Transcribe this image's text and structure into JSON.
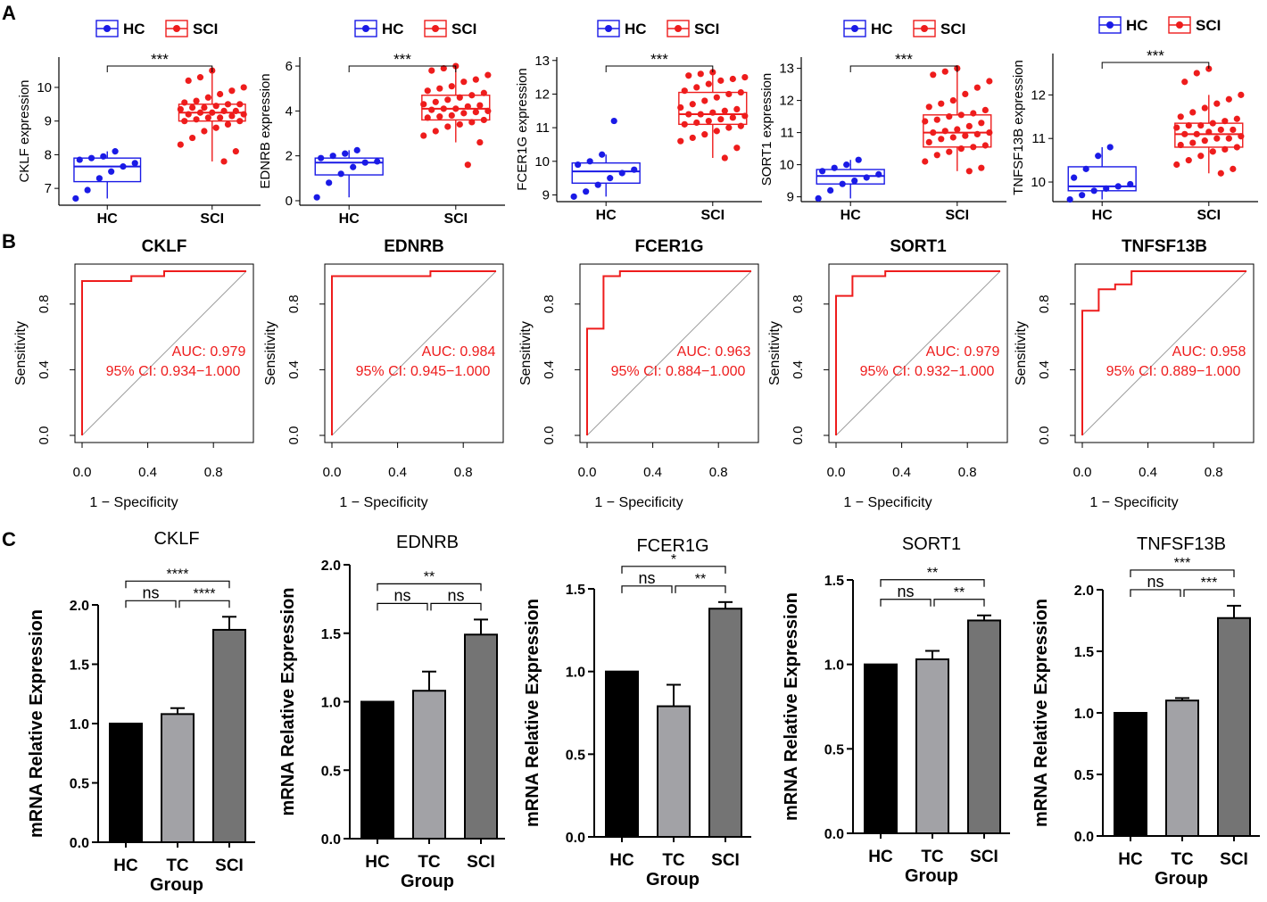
{
  "colors": {
    "hc": "#1a1ae6",
    "sci": "#ee1c1c",
    "roc": "#ee1c1c",
    "diag": "#9e9e9e",
    "axis": "#000000",
    "bar_hc": "#000000",
    "bar_tc": "#a2a2a6",
    "bar_sci": "#747474"
  },
  "panel_labels": {
    "a": "A",
    "b": "B",
    "c": "C"
  },
  "legend": {
    "hc": "HC",
    "sci": "SCI"
  },
  "roc_axes": {
    "xlabel": "1 − Specificity",
    "ylabel": "Sensitivity",
    "ticks": [
      "0.0",
      "0.4",
      "0.8"
    ],
    "auc_prefix": "AUC: ",
    "ci_prefix": "95% CI: "
  },
  "bar_axes": {
    "xlabel": "Group",
    "ylabel": "mRNA Relative Expression"
  },
  "chart_data": [
    {
      "type": "box",
      "panel": "A",
      "gene": "CKLF",
      "ylabel": "CKLF expression",
      "categories": [
        "HC",
        "SCI"
      ],
      "ylim": [
        6.5,
        10.9
      ],
      "yticks": [
        7,
        8,
        9,
        10
      ],
      "significance": "***",
      "groups": [
        {
          "name": "HC",
          "q1": 7.2,
          "median": 7.65,
          "q3": 7.9,
          "whisker_low": 6.7,
          "whisker_high": 8.1,
          "points": [
            6.7,
            6.95,
            7.3,
            7.5,
            7.65,
            7.75,
            7.85,
            7.9,
            7.95,
            8.1
          ]
        },
        {
          "name": "SCI",
          "q1": 9.0,
          "median": 9.25,
          "q3": 9.5,
          "whisker_low": 7.8,
          "whisker_high": 10.5,
          "points": [
            7.8,
            8.1,
            8.3,
            8.5,
            8.7,
            8.8,
            8.9,
            9.0,
            9.0,
            9.05,
            9.1,
            9.1,
            9.15,
            9.2,
            9.2,
            9.25,
            9.25,
            9.3,
            9.3,
            9.35,
            9.4,
            9.4,
            9.45,
            9.5,
            9.5,
            9.55,
            9.6,
            9.7,
            9.8,
            9.9,
            10.0,
            10.2,
            10.3,
            10.5
          ]
        }
      ]
    },
    {
      "type": "box",
      "panel": "A",
      "gene": "EDNRB",
      "ylabel": "EDNRB expression",
      "categories": [
        "HC",
        "SCI"
      ],
      "ylim": [
        -0.2,
        6.4
      ],
      "yticks": [
        0,
        2,
        4,
        6
      ],
      "significance": "***",
      "groups": [
        {
          "name": "HC",
          "q1": 1.15,
          "median": 1.7,
          "q3": 1.9,
          "whisker_low": 0.15,
          "whisker_high": 2.25,
          "points": [
            0.15,
            0.8,
            1.2,
            1.5,
            1.7,
            1.75,
            1.9,
            2.0,
            2.1,
            2.25
          ]
        },
        {
          "name": "SCI",
          "q1": 3.6,
          "median": 4.1,
          "q3": 4.7,
          "whisker_low": 2.6,
          "whisker_high": 6.0,
          "points": [
            1.6,
            2.6,
            2.9,
            3.1,
            3.3,
            3.4,
            3.5,
            3.6,
            3.7,
            3.75,
            3.8,
            3.9,
            3.95,
            4.0,
            4.05,
            4.1,
            4.1,
            4.2,
            4.25,
            4.3,
            4.4,
            4.5,
            4.6,
            4.7,
            4.8,
            4.9,
            5.0,
            5.1,
            5.3,
            5.4,
            5.6,
            5.8,
            5.9,
            6.0
          ]
        }
      ]
    },
    {
      "type": "box",
      "panel": "A",
      "gene": "FCER1G",
      "ylabel": "FCER1G expression",
      "categories": [
        "HC",
        "SCI"
      ],
      "ylim": [
        8.8,
        13.1
      ],
      "yticks": [
        9,
        10,
        11,
        12,
        13
      ],
      "significance": "***",
      "groups": [
        {
          "name": "HC",
          "q1": 9.35,
          "median": 9.7,
          "q3": 9.95,
          "whisker_low": 8.95,
          "whisker_high": 10.2,
          "points": [
            8.95,
            9.1,
            9.3,
            9.5,
            9.65,
            9.75,
            9.9,
            10.0,
            10.2,
            11.2
          ]
        },
        {
          "name": "SCI",
          "q1": 11.1,
          "median": 11.4,
          "q3": 12.05,
          "whisker_low": 10.1,
          "whisker_high": 12.6,
          "points": [
            10.1,
            10.4,
            10.6,
            10.7,
            10.8,
            10.9,
            11.0,
            11.05,
            11.1,
            11.15,
            11.2,
            11.25,
            11.3,
            11.35,
            11.4,
            11.4,
            11.45,
            11.5,
            11.55,
            11.6,
            11.7,
            11.8,
            11.9,
            12.0,
            12.05,
            12.1,
            12.2,
            12.3,
            12.4,
            12.45,
            12.5,
            12.55,
            12.6,
            12.65
          ]
        }
      ]
    },
    {
      "type": "box",
      "panel": "A",
      "gene": "SORT1",
      "ylabel": "SORT1 expression",
      "categories": [
        "HC",
        "SCI"
      ],
      "ylim": [
        8.85,
        13.35
      ],
      "yticks": [
        9,
        10,
        11,
        12,
        13
      ],
      "significance": "***",
      "groups": [
        {
          "name": "HC",
          "q1": 9.4,
          "median": 9.65,
          "q3": 9.85,
          "whisker_low": 8.95,
          "whisker_high": 10.15,
          "points": [
            8.95,
            9.2,
            9.4,
            9.5,
            9.6,
            9.7,
            9.8,
            9.9,
            10.0,
            10.15
          ]
        },
        {
          "name": "SCI",
          "q1": 10.55,
          "median": 11.0,
          "q3": 11.55,
          "whisker_low": 9.8,
          "whisker_high": 13.0,
          "points": [
            9.8,
            9.9,
            10.1,
            10.3,
            10.4,
            10.5,
            10.55,
            10.6,
            10.7,
            10.8,
            10.85,
            10.9,
            10.95,
            11.0,
            11.0,
            11.05,
            11.1,
            11.2,
            11.3,
            11.35,
            11.4,
            11.5,
            11.55,
            11.6,
            11.7,
            11.8,
            11.9,
            12.0,
            12.2,
            12.4,
            12.6,
            12.8,
            12.9,
            13.0
          ]
        }
      ]
    },
    {
      "type": "box",
      "panel": "A",
      "gene": "TNFSF13B",
      "ylabel": "TNFSF13B expression",
      "categories": [
        "HC",
        "SCI"
      ],
      "ylim": [
        9.55,
        12.95
      ],
      "yticks": [
        10,
        11,
        12
      ],
      "significance": "***",
      "groups": [
        {
          "name": "HC",
          "q1": 9.8,
          "median": 9.9,
          "q3": 10.35,
          "whisker_low": 9.6,
          "whisker_high": 10.8,
          "points": [
            9.6,
            9.7,
            9.8,
            9.85,
            9.9,
            9.95,
            10.1,
            10.3,
            10.6,
            10.8
          ]
        },
        {
          "name": "SCI",
          "q1": 10.8,
          "median": 11.1,
          "q3": 11.35,
          "whisker_low": 10.2,
          "whisker_high": 12.0,
          "points": [
            10.2,
            10.3,
            10.4,
            10.5,
            10.6,
            10.7,
            10.75,
            10.8,
            10.85,
            10.9,
            10.95,
            11.0,
            11.0,
            11.05,
            11.1,
            11.1,
            11.15,
            11.2,
            11.2,
            11.25,
            11.3,
            11.3,
            11.35,
            11.4,
            11.45,
            11.5,
            11.6,
            11.7,
            11.8,
            11.9,
            12.0,
            12.3,
            12.5,
            12.6
          ]
        }
      ]
    },
    {
      "type": "line",
      "panel": "B",
      "title": "CKLF",
      "auc": "0.979",
      "ci": "0.934−1.000",
      "x": [
        0,
        0,
        0,
        0.3,
        0.3,
        0.5,
        0.5,
        1
      ],
      "y": [
        0,
        0,
        0.94,
        0.94,
        0.97,
        0.97,
        1,
        1
      ]
    },
    {
      "type": "line",
      "panel": "B",
      "title": "EDNRB",
      "auc": "0.984",
      "ci": "0.945−1.000",
      "x": [
        0,
        0,
        0.6,
        0.6,
        1
      ],
      "y": [
        0,
        0.97,
        0.97,
        1,
        1
      ]
    },
    {
      "type": "line",
      "panel": "B",
      "title": "FCER1G",
      "auc": "0.963",
      "ci": "0.884−1.000",
      "x": [
        0,
        0,
        0.1,
        0.1,
        0.2,
        0.2,
        1
      ],
      "y": [
        0,
        0.65,
        0.65,
        0.97,
        0.97,
        1,
        1
      ]
    },
    {
      "type": "line",
      "panel": "B",
      "title": "SORT1",
      "auc": "0.979",
      "ci": "0.932−1.000",
      "x": [
        0,
        0,
        0.1,
        0.1,
        0.3,
        0.3,
        1
      ],
      "y": [
        0,
        0.85,
        0.85,
        0.97,
        0.97,
        1,
        1
      ]
    },
    {
      "type": "line",
      "panel": "B",
      "title": "TNFSF13B",
      "auc": "0.958",
      "ci": "0.889−1.000",
      "x": [
        0,
        0,
        0.1,
        0.1,
        0.2,
        0.2,
        0.3,
        0.3,
        1
      ],
      "y": [
        0,
        0.76,
        0.76,
        0.89,
        0.89,
        0.92,
        0.92,
        1,
        1
      ]
    },
    {
      "type": "bar",
      "panel": "C",
      "title": "CKLF",
      "categories": [
        "HC",
        "TC",
        "SCI"
      ],
      "values": [
        1.0,
        1.08,
        1.79
      ],
      "errors": [
        0,
        0.05,
        0.11
      ],
      "ylim": [
        0,
        2.0
      ],
      "yticks": [
        "0.0",
        "0.5",
        "1.0",
        "1.5",
        "2.0"
      ],
      "comparisons": [
        {
          "pair": [
            "HC",
            "SCI"
          ],
          "label": "****"
        },
        {
          "pair": [
            "HC",
            "TC"
          ],
          "label": "ns"
        },
        {
          "pair": [
            "TC",
            "SCI"
          ],
          "label": "****"
        }
      ]
    },
    {
      "type": "bar",
      "panel": "C",
      "title": "EDNRB",
      "categories": [
        "HC",
        "TC",
        "SCI"
      ],
      "values": [
        1.0,
        1.08,
        1.49
      ],
      "errors": [
        0,
        0.14,
        0.11
      ],
      "ylim": [
        0,
        2.0
      ],
      "yticks": [
        "0.0",
        "0.5",
        "1.0",
        "1.5",
        "2.0"
      ],
      "comparisons": [
        {
          "pair": [
            "HC",
            "SCI"
          ],
          "label": "**"
        },
        {
          "pair": [
            "HC",
            "TC"
          ],
          "label": "ns"
        },
        {
          "pair": [
            "TC",
            "SCI"
          ],
          "label": "ns"
        }
      ]
    },
    {
      "type": "bar",
      "panel": "C",
      "title": "FCER1G",
      "categories": [
        "HC",
        "TC",
        "SCI"
      ],
      "values": [
        1.0,
        0.79,
        1.38
      ],
      "errors": [
        0,
        0.13,
        0.04
      ],
      "ylim": [
        0,
        1.5
      ],
      "yticks": [
        "0.0",
        "0.5",
        "1.0",
        "1.5"
      ],
      "comparisons": [
        {
          "pair": [
            "HC",
            "SCI"
          ],
          "label": "*"
        },
        {
          "pair": [
            "HC",
            "TC"
          ],
          "label": "ns"
        },
        {
          "pair": [
            "TC",
            "SCI"
          ],
          "label": "**"
        }
      ]
    },
    {
      "type": "bar",
      "panel": "C",
      "title": "SORT1",
      "categories": [
        "HC",
        "TC",
        "SCI"
      ],
      "values": [
        1.0,
        1.03,
        1.26
      ],
      "errors": [
        0,
        0.05,
        0.03
      ],
      "ylim": [
        0,
        1.5
      ],
      "yticks": [
        "0.0",
        "0.5",
        "1.0",
        "1.5"
      ],
      "comparisons": [
        {
          "pair": [
            "HC",
            "SCI"
          ],
          "label": "**"
        },
        {
          "pair": [
            "HC",
            "TC"
          ],
          "label": "ns"
        },
        {
          "pair": [
            "TC",
            "SCI"
          ],
          "label": "**"
        }
      ]
    },
    {
      "type": "bar",
      "panel": "C",
      "title": "TNFSF13B",
      "categories": [
        "HC",
        "TC",
        "SCI"
      ],
      "values": [
        1.0,
        1.1,
        1.77
      ],
      "errors": [
        0,
        0.02,
        0.1
      ],
      "ylim": [
        0,
        2.0
      ],
      "yticks": [
        "0.0",
        "0.5",
        "1.0",
        "1.5",
        "2.0"
      ],
      "comparisons": [
        {
          "pair": [
            "HC",
            "SCI"
          ],
          "label": "***"
        },
        {
          "pair": [
            "HC",
            "TC"
          ],
          "label": "ns"
        },
        {
          "pair": [
            "TC",
            "SCI"
          ],
          "label": "***"
        }
      ]
    }
  ]
}
